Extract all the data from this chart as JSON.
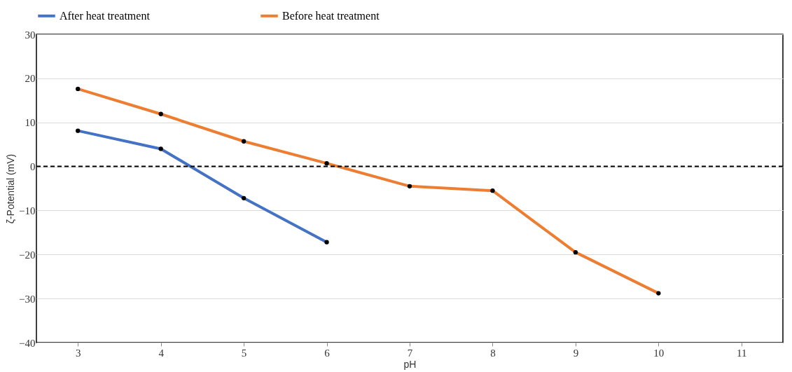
{
  "chart_data": {
    "type": "line",
    "xlabel": "pH",
    "ylabel": "ζ-Potential (mV)",
    "categories": [
      "3",
      "4",
      "5",
      "6",
      "7",
      "8",
      "9",
      "10",
      "11"
    ],
    "series": [
      {
        "name": "After heat treatment",
        "color": "#4472c4",
        "values": [
          8.1,
          4.0,
          -7.2,
          -17.2,
          null,
          null,
          null,
          null,
          null
        ]
      },
      {
        "name": "Before heat treatment",
        "color": "#ed7d31",
        "values": [
          17.6,
          11.9,
          5.7,
          0.7,
          -4.5,
          -5.5,
          -19.5,
          -28.8,
          null
        ]
      }
    ],
    "ylim": [
      -40,
      30
    ],
    "yticks": [
      -40,
      -30,
      -20,
      -10,
      0,
      10,
      20,
      30
    ],
    "ref_lines": [
      {
        "axis": "y",
        "value": 0,
        "color": "#000000",
        "line_style": "dashed"
      }
    ],
    "grid": "y",
    "legend": "top",
    "marker": "circle",
    "line_style": "solid"
  }
}
